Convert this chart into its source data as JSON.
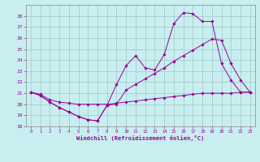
{
  "background_color": "#c8eef0",
  "grid_color": "#a0c8c8",
  "line_color": "#990099",
  "xlabel": "Windchill (Refroidissement éolien,°C)",
  "xlim": [
    -0.5,
    23.5
  ],
  "ylim": [
    18,
    29
  ],
  "yticks": [
    18,
    19,
    20,
    21,
    22,
    23,
    24,
    25,
    26,
    27,
    28
  ],
  "xticks": [
    0,
    1,
    2,
    3,
    4,
    5,
    6,
    7,
    8,
    9,
    10,
    11,
    12,
    13,
    14,
    15,
    16,
    17,
    18,
    19,
    20,
    21,
    22,
    23
  ],
  "line1_x": [
    0,
    1,
    2,
    3,
    4,
    5,
    6,
    7,
    8,
    9,
    10,
    11,
    12,
    13,
    14,
    15,
    16,
    17,
    18,
    19,
    20,
    21,
    22,
    23
  ],
  "line1_y": [
    21.1,
    20.8,
    20.2,
    19.7,
    19.3,
    18.9,
    18.6,
    18.5,
    19.9,
    21.8,
    23.5,
    24.4,
    23.3,
    23.1,
    24.5,
    27.3,
    28.3,
    28.2,
    27.5,
    27.5,
    23.7,
    22.2,
    21.1,
    21.1
  ],
  "line2_x": [
    0,
    1,
    2,
    3,
    4,
    5,
    6,
    7,
    8,
    9,
    10,
    11,
    12,
    13,
    14,
    15,
    16,
    17,
    18,
    19,
    20,
    21,
    22,
    23
  ],
  "line2_y": [
    21.1,
    20.8,
    20.2,
    19.7,
    19.3,
    18.9,
    18.6,
    18.5,
    19.9,
    20.0,
    21.3,
    21.8,
    22.3,
    22.8,
    23.3,
    23.9,
    24.4,
    24.9,
    25.4,
    25.9,
    25.8,
    23.7,
    22.2,
    21.1
  ],
  "line3_x": [
    0,
    1,
    2,
    3,
    4,
    5,
    6,
    7,
    8,
    9,
    10,
    11,
    12,
    13,
    14,
    15,
    16,
    17,
    18,
    19,
    20,
    21,
    22,
    23
  ],
  "line3_y": [
    21.1,
    20.9,
    20.4,
    20.2,
    20.1,
    20.0,
    20.0,
    20.0,
    20.0,
    20.1,
    20.2,
    20.3,
    20.4,
    20.5,
    20.6,
    20.7,
    20.8,
    20.9,
    21.0,
    21.0,
    21.0,
    21.0,
    21.1,
    21.1
  ]
}
